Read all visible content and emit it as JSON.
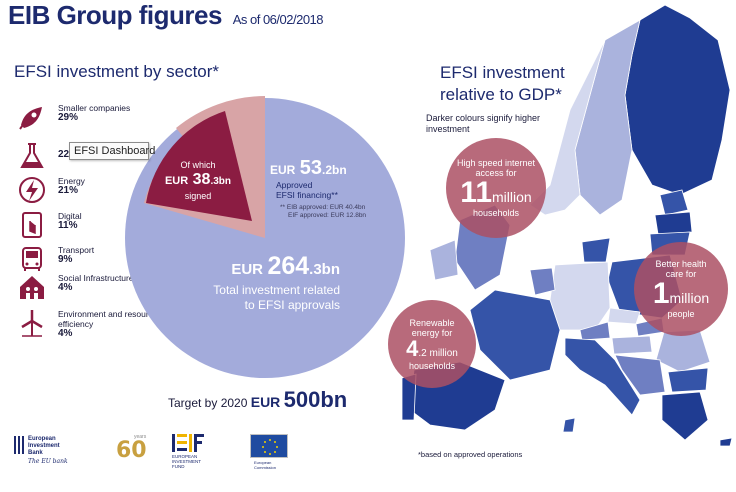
{
  "header": {
    "title": "EIB Group figures",
    "date": "As of 06/02/2018"
  },
  "sector_section": {
    "heading": "EFSI investment by sector*",
    "sectors": [
      {
        "icon": "rocket-icon",
        "name": "Smaller companies",
        "pct": "29%"
      },
      {
        "icon": "flask-icon",
        "name": "",
        "pct": "22%"
      },
      {
        "icon": "lightning-icon",
        "name": "Energy",
        "pct": "21%"
      },
      {
        "icon": "touch-screen-icon",
        "name": "Digital",
        "pct": "11%"
      },
      {
        "icon": "bus-icon",
        "name": "Transport",
        "pct": "9%"
      },
      {
        "icon": "house-people-icon",
        "name": "Social Infrastructure",
        "pct": "4%"
      },
      {
        "icon": "windmill-icon",
        "name": "Environment and resource efficiency",
        "pct": "4%"
      }
    ],
    "tooltip": "EFSI Dashboard"
  },
  "pie": {
    "signed_prefix": "Of which",
    "signed_currency": "EUR",
    "signed_num": "38",
    "signed_dec": ".3bn",
    "signed_label": "signed",
    "approved_currency": "EUR",
    "approved_num": "53",
    "approved_dec": ".2bn",
    "approved_line1": "Approved",
    "approved_line2": "EFSI financing**",
    "eib_approved": "** EIB approved: EUR 40.4bn",
    "eif_approved": "EIF approved: EUR 12.8bn",
    "total_currency": "EUR",
    "total_num": "264",
    "total_dec": ".3bn",
    "total_line1": "Total investment related",
    "total_line2": "to EFSI approvals",
    "colors": {
      "total": "#a3abdb",
      "approved": "#d8a4a6",
      "signed": "#8b1c42"
    }
  },
  "target": {
    "label": "Target by 2020",
    "currency": "EUR",
    "value": "500bn"
  },
  "gdp_section": {
    "heading_line1": "EFSI investment",
    "heading_line2": "relative to GDP*",
    "note": "Darker colours signify higher investment",
    "footnote": "*based on approved operations"
  },
  "bubbles": {
    "internet": {
      "top": "High speed internet access for",
      "big": "11",
      "big_suffix": "million",
      "bottom": "households"
    },
    "health": {
      "top": "Better health care for",
      "big": "1",
      "big_suffix": "million",
      "bottom": "people"
    },
    "energy": {
      "top": "Renewable energy for",
      "big": "4",
      "big_suffix": ".2 million",
      "bottom": "households"
    }
  },
  "logos": {
    "eib_line1": "European",
    "eib_line2": "Investment",
    "eib_line3": "Bank",
    "eib_tagline": "The EU bank",
    "anniv": "60",
    "anniv_small": "years",
    "eif_line1": "EUROPEAN",
    "eif_line2": "INVESTMENT",
    "eif_line3": "FUND",
    "ec_line1": "European",
    "ec_line2": "Commission"
  },
  "map_colors": {
    "darkest": "#1f3c92",
    "dark": "#3554a8",
    "medium": "#6f7fc2",
    "light": "#aab3dd",
    "lightest": "#d3d8ee"
  }
}
